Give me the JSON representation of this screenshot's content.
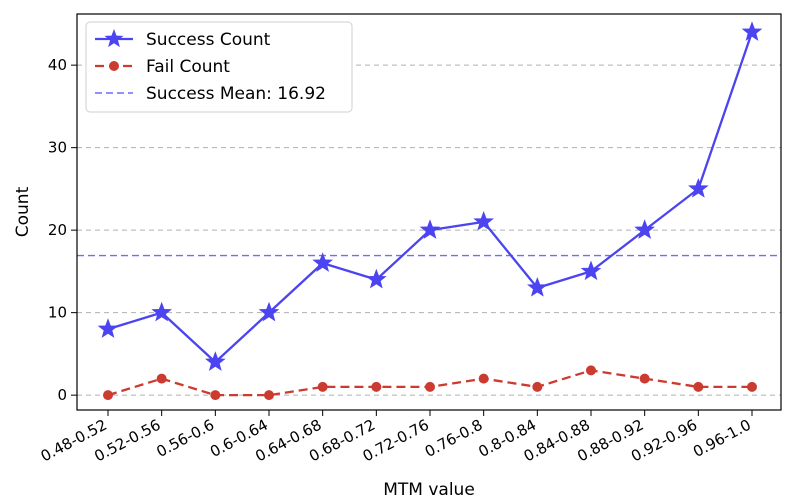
{
  "chart_data": {
    "type": "line",
    "xlabel": "MTM value",
    "ylabel": "Count",
    "categories": [
      "0.48-0.52",
      "0.52-0.56",
      "0.56-0.6",
      "0.6-0.64",
      "0.64-0.68",
      "0.68-0.72",
      "0.72-0.76",
      "0.76-0.8",
      "0.8-0.84",
      "0.84-0.88",
      "0.88-0.92",
      "0.92-0.96",
      "0.96-1.0"
    ],
    "series": [
      {
        "name": "Success Count",
        "values": [
          8,
          10,
          4,
          10,
          16,
          14,
          20,
          21,
          13,
          15,
          20,
          25,
          44
        ],
        "color": "#4b44f0",
        "line_style": "solid",
        "marker": "star"
      },
      {
        "name": "Fail Count",
        "values": [
          0,
          2,
          0,
          0,
          1,
          1,
          1,
          2,
          1,
          3,
          2,
          1,
          1
        ],
        "color": "#cc3b30",
        "line_style": "dashed",
        "marker": "circle"
      }
    ],
    "reference_lines": [
      {
        "name": "Success Mean: 16.92",
        "value": 16.92,
        "color": "#6f6cff",
        "line_style": "dashed"
      }
    ],
    "yticks": [
      0,
      10,
      20,
      30,
      40
    ],
    "ylim": [
      -1.8,
      46.2
    ],
    "grid": "horizontal-dashed",
    "legend_position": "top-left"
  }
}
